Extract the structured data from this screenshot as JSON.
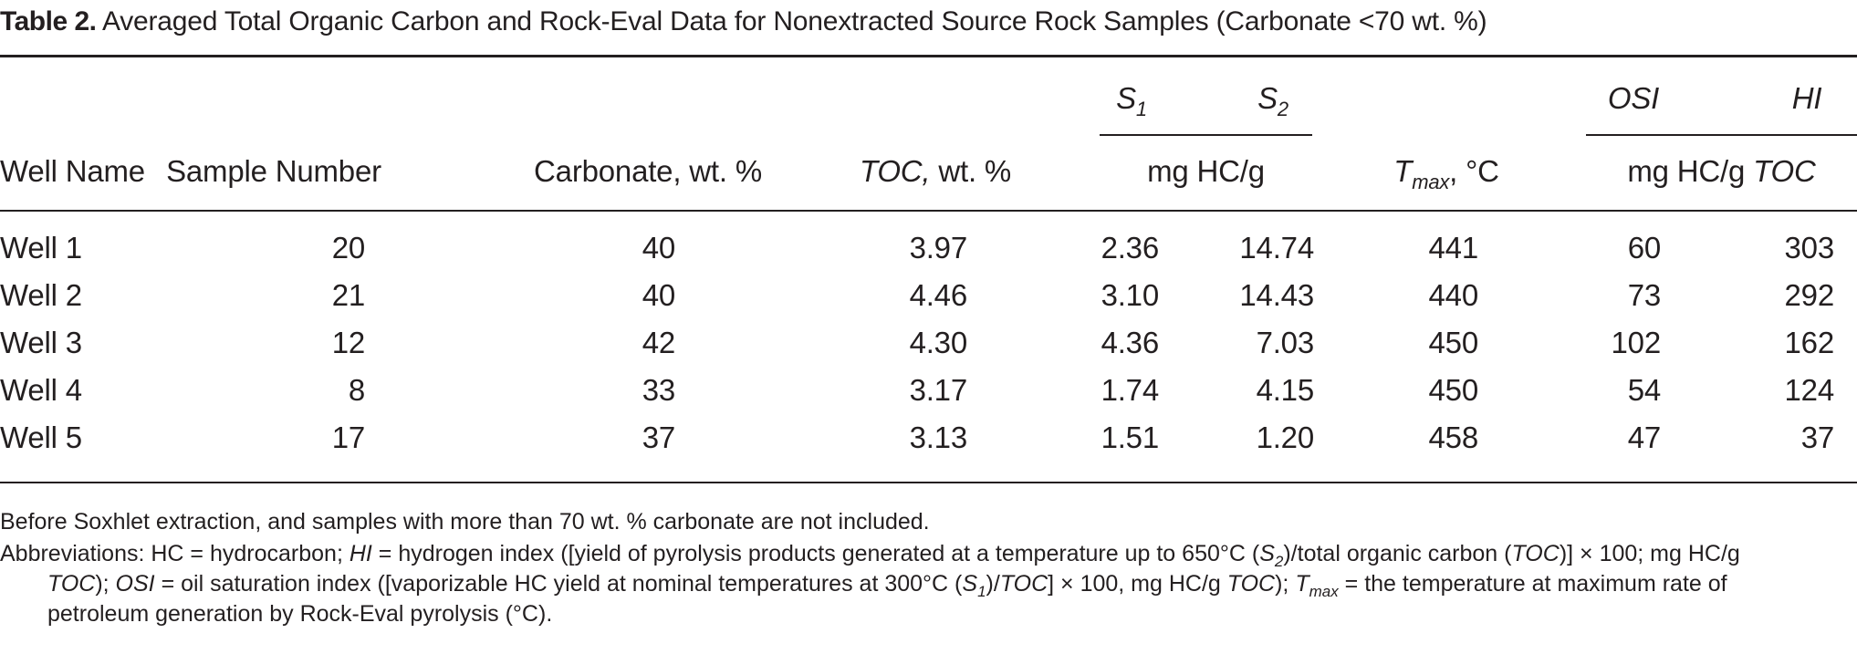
{
  "caption": {
    "label": "Table 2.",
    "text": "Averaged Total Organic Carbon and Rock-Eval Data for Nonextracted Source Rock Samples (Carbonate <70 wt. %)"
  },
  "headers": {
    "well_name": "Well Name",
    "sample_number": "Sample Number",
    "carbonate": "Carbonate, wt. %",
    "toc_symbol": "TOC,",
    "toc_unit": "wt. %",
    "s1_base": "S",
    "s1_sub": "1",
    "s2_base": "S",
    "s2_sub": "2",
    "s_unit": "mg HC/g",
    "tmax_base": "T",
    "tmax_sub": "max",
    "tmax_comma": ",",
    "tmax_unit": "°C",
    "osi": "OSI",
    "hi": "HI",
    "idx_unit": "mg HC/g",
    "idx_unit_toc": "TOC"
  },
  "rows": [
    {
      "well": "Well 1",
      "sample": "20",
      "carbonate": "40",
      "toc": "3.97",
      "s1": "2.36",
      "s2": "14.74",
      "tmax": "441",
      "osi": "60",
      "hi": "303"
    },
    {
      "well": "Well 2",
      "sample": "21",
      "carbonate": "40",
      "toc": "4.46",
      "s1": "3.10",
      "s2": "14.43",
      "tmax": "440",
      "osi": "73",
      "hi": "292"
    },
    {
      "well": "Well 3",
      "sample": "12",
      "carbonate": "42",
      "toc": "4.30",
      "s1": "4.36",
      "s2": "7.03",
      "tmax": "450",
      "osi": "102",
      "hi": "162"
    },
    {
      "well": "Well 4",
      "sample": "8",
      "carbonate": "33",
      "toc": "3.17",
      "s1": "1.74",
      "s2": "4.15",
      "tmax": "450",
      "osi": "54",
      "hi": "124"
    },
    {
      "well": "Well 5",
      "sample": "17",
      "carbonate": "37",
      "toc": "3.13",
      "s1": "1.51",
      "s2": "1.20",
      "tmax": "458",
      "osi": "47",
      "hi": "37"
    }
  ],
  "footnotes": {
    "note1": "Before Soxhlet extraction, and samples with more than 70 wt. % carbonate are not included.",
    "abbr_a": "Abbreviations: HC = hydrocarbon; ",
    "abbr_hi": "HI",
    "abbr_b": " = hydrogen index ([yield of pyrolysis products generated at a temperature up to 650°C (",
    "abbr_s2": "S",
    "abbr_s2_sub": "2",
    "abbr_c": ")/total organic carbon (",
    "abbr_toc1": "TOC",
    "abbr_d": ")] × 100; mg HC/g",
    "abbr_toc2": "TOC",
    "abbr_e": "); ",
    "abbr_osi": "OSI",
    "abbr_f": " = oil saturation index ([vaporizable HC yield at nominal temperatures at 300°C (",
    "abbr_s1": "S",
    "abbr_s1_sub": "1",
    "abbr_g": ")/",
    "abbr_toc3": "TOC",
    "abbr_h": "] × 100, mg HC/g ",
    "abbr_toc4": "TOC",
    "abbr_i": "); ",
    "abbr_tmax": "T",
    "abbr_tmax_sub": "max",
    "abbr_j": " = the temperature at maximum rate of",
    "abbr_k": "petroleum generation by Rock-Eval pyrolysis (°C)."
  }
}
